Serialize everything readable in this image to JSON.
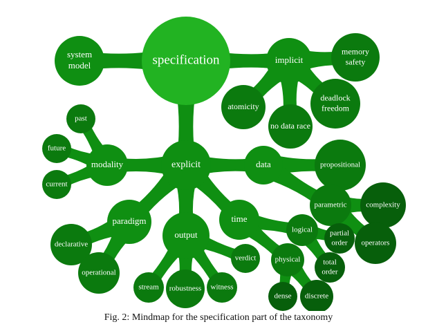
{
  "caption": "Fig. 2: Mindmap for the specification part of the taxonomy",
  "colors": {
    "root": "#22b322",
    "level1": "#0f8f12",
    "level2": "#0b7a0e",
    "level3": "#075f0b",
    "link": "#0f8f12"
  },
  "nodes": {
    "specification": [
      "specification"
    ],
    "system_model": [
      "system",
      "model"
    ],
    "implicit": [
      "implicit"
    ],
    "memory_safety": [
      "memory",
      "safety"
    ],
    "atomicity": [
      "atomicity"
    ],
    "no_data_race": [
      "no data race"
    ],
    "deadlock_freedom": [
      "deadlock",
      "freedom"
    ],
    "explicit": [
      "explicit"
    ],
    "modality": [
      "modality"
    ],
    "past": [
      "past"
    ],
    "future": [
      "future"
    ],
    "current": [
      "current"
    ],
    "data": [
      "data"
    ],
    "propositional": [
      "propositional"
    ],
    "parametric": [
      "parametric"
    ],
    "complexity": [
      "complexity"
    ],
    "operators": [
      "operators"
    ],
    "paradigm": [
      "paradigm"
    ],
    "declarative": [
      "declarative"
    ],
    "operational": [
      "operational"
    ],
    "output": [
      "output"
    ],
    "stream": [
      "stream"
    ],
    "robustness": [
      "robustness"
    ],
    "witness": [
      "witness"
    ],
    "verdict": [
      "verdict"
    ],
    "time": [
      "time"
    ],
    "logical": [
      "logical"
    ],
    "partial_order": [
      "partial",
      "order"
    ],
    "total_order": [
      "total",
      "order"
    ],
    "physical": [
      "physical"
    ],
    "dense": [
      "dense"
    ],
    "discrete": [
      "discrete"
    ]
  }
}
